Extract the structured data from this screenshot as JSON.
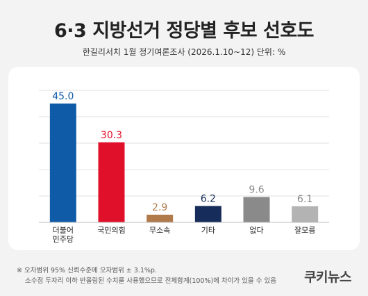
{
  "chart_data": {
    "type": "bar",
    "title": "6·3 지방선거 정당별 후보 선호도",
    "subtitle": "한길리서치 1월 정기여론조사 (2026.1.10~12) 단위: %",
    "categories": [
      {
        "label_lines": [
          "더불어",
          "민주당"
        ],
        "value": 45.0,
        "value_label": "45.0",
        "color": "#0f5ba7"
      },
      {
        "label_lines": [
          "국민의힘"
        ],
        "value": 30.3,
        "value_label": "30.3",
        "color": "#e1102a"
      },
      {
        "label_lines": [
          "무소속"
        ],
        "value": 2.9,
        "value_label": "2.9",
        "color": "#b07a4a"
      },
      {
        "label_lines": [
          "기타"
        ],
        "value": 6.2,
        "value_label": "6.2",
        "color": "#162c5a"
      },
      {
        "label_lines": [
          "없다"
        ],
        "value": 9.6,
        "value_label": "9.6",
        "color": "#8a8a8a"
      },
      {
        "label_lines": [
          "잘모름"
        ],
        "value": 6.1,
        "value_label": "6.1",
        "color": "#b3b3b3"
      }
    ],
    "ylim": [
      0,
      50
    ],
    "grid": true
  },
  "footnotes": [
    "※ 오차범위 95% 신뢰수준에 오차범위 ± 3.1%p.",
    "소수점 두자리 이하 반올림된 수치를 사용했으므로 전체합계(100%)에 차이가 있을 수 있음"
  ],
  "brand": "쿠키뉴스"
}
